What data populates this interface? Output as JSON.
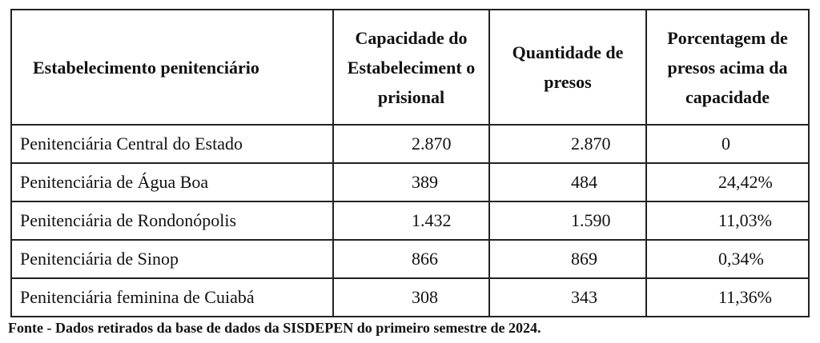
{
  "table": {
    "headers": [
      "Estabelecimento penitenciário",
      "Capacidade do Estabeleciment o prisional",
      "Quantidade de presos",
      "Porcentagem de presos acima da capacidade"
    ],
    "rows": [
      {
        "establishment": "Penitenciária Central do Estado",
        "capacity": "2.870",
        "prisoners": "2.870",
        "over_capacity": "0"
      },
      {
        "establishment": "Penitenciária de Água Boa",
        "capacity": "389",
        "prisoners": "484",
        "over_capacity": "24,42%"
      },
      {
        "establishment": "Penitenciária de Rondonópolis",
        "capacity": "1.432",
        "prisoners": "1.590",
        "over_capacity": "11,03%"
      },
      {
        "establishment": "Penitenciária de Sinop",
        "capacity": "866",
        "prisoners": "869",
        "over_capacity": "0,34%"
      },
      {
        "establishment": "Penitenciária feminina de Cuiabá",
        "capacity": "308",
        "prisoners": "343",
        "over_capacity": "11,36%"
      }
    ]
  },
  "source_note": "Fonte - Dados retirados da base de dados da SISDEPEN do primeiro semestre de 2024."
}
